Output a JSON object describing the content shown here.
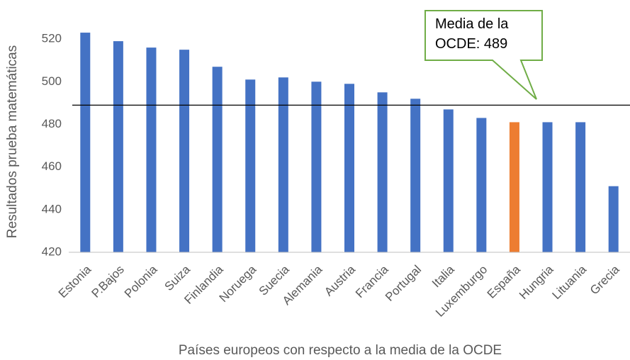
{
  "chart_data": {
    "type": "bar",
    "categories": [
      "Estonia",
      "P.Bajos",
      "Polonia",
      "Suiza",
      "Finlandia",
      "Noruega",
      "Suecia",
      "Alemania",
      "Austria",
      "Francia",
      "Portugal",
      "Italia",
      "Luxemburgo",
      "España",
      "Hungria",
      "Lituania",
      "Grecia"
    ],
    "values": [
      523,
      519,
      516,
      515,
      507,
      501,
      502,
      500,
      499,
      495,
      492,
      487,
      483,
      481,
      481,
      481,
      451
    ],
    "colors": [
      "#4472c4",
      "#4472c4",
      "#4472c4",
      "#4472c4",
      "#4472c4",
      "#4472c4",
      "#4472c4",
      "#4472c4",
      "#4472c4",
      "#4472c4",
      "#4472c4",
      "#4472c4",
      "#4472c4",
      "#ed7d31",
      "#4472c4",
      "#4472c4",
      "#4472c4"
    ],
    "ylim": [
      420,
      530
    ],
    "yticks": [
      420,
      440,
      460,
      480,
      500,
      520
    ],
    "ylabel": "Resultados prueba matemáticas",
    "xlabel": "Países europeos con respecto a la media de la OCDE",
    "reference_line": 489,
    "annotation": "Media de la OCDE: 489",
    "grid": false
  }
}
